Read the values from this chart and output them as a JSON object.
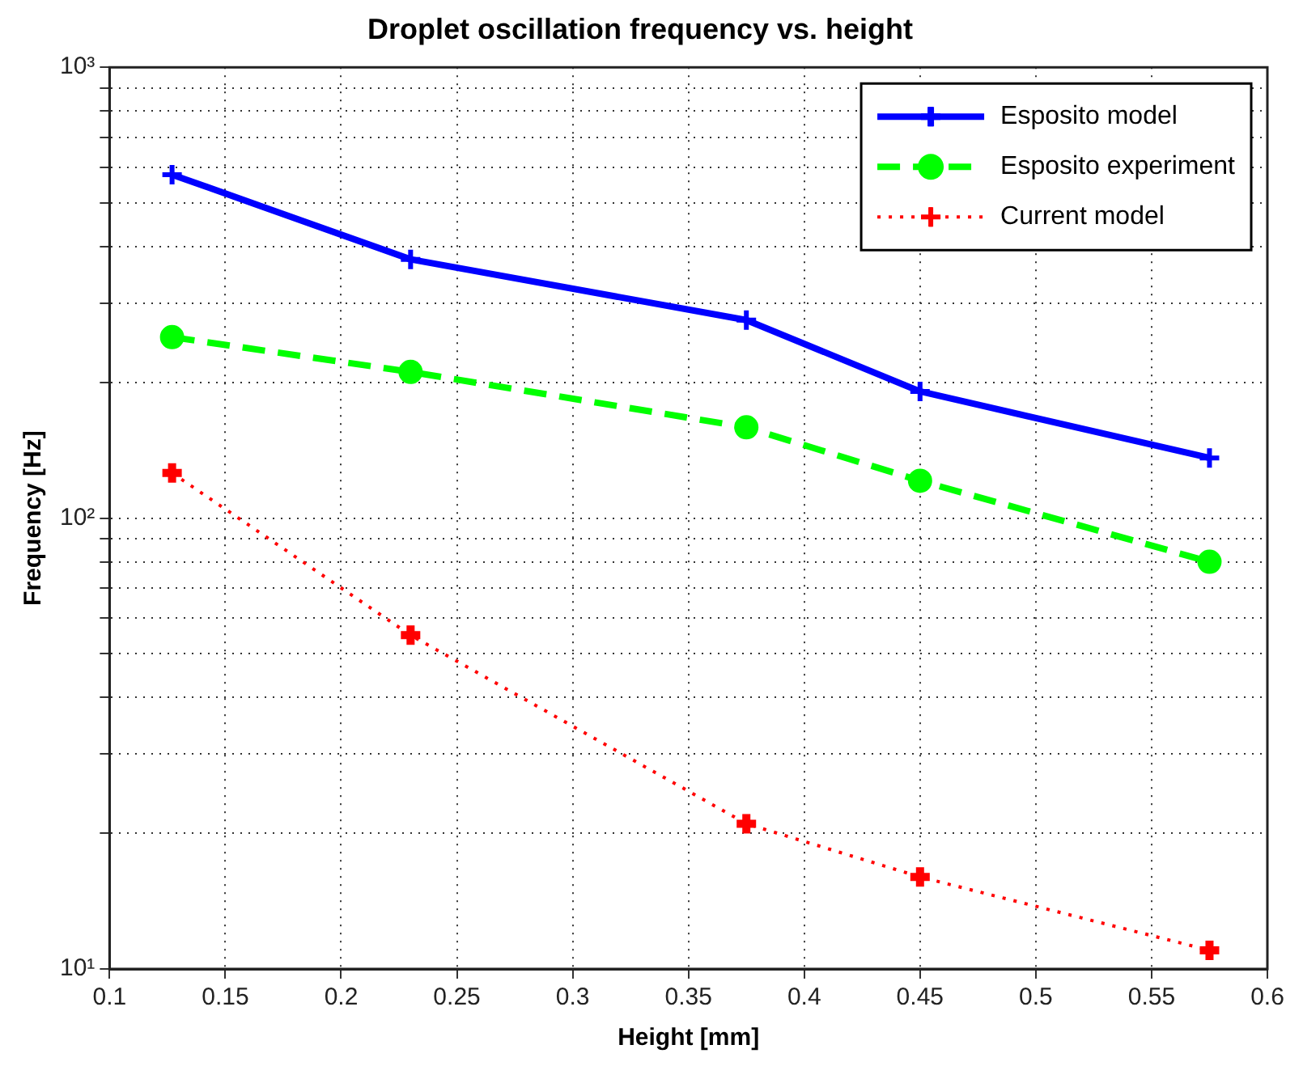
{
  "chart_data": {
    "type": "line",
    "title": "Droplet oscillation frequency vs. height",
    "xlabel": "Height [mm]",
    "ylabel": "Frequency [Hz]",
    "x": [
      0.127,
      0.23,
      0.375,
      0.45,
      0.575
    ],
    "series": [
      {
        "name": "Esposito model",
        "color": "#0000ff",
        "values": [
          578,
          375,
          275,
          191,
          136
        ],
        "marker": "cross",
        "line_style": "solid"
      },
      {
        "name": "Esposito experiment",
        "color": "#00ff00",
        "values": [
          252,
          211,
          159,
          121,
          80
        ],
        "marker": "circle",
        "line_style": "dashed"
      },
      {
        "name": "Current model",
        "color": "#ff0000",
        "values": [
          126,
          55,
          21,
          16,
          11
        ],
        "marker": "cross",
        "line_style": "dotted"
      }
    ],
    "log": "y",
    "xlim": [
      0.1,
      0.6
    ],
    "xticks": [
      0.1,
      0.15,
      0.2,
      0.25,
      0.3,
      0.35,
      0.4,
      0.45,
      0.5,
      0.55,
      0.6
    ],
    "ylim": [
      10,
      1000
    ],
    "yticks": [
      {
        "value": 10,
        "label": "10¹"
      },
      {
        "value": 20,
        "label": null
      },
      {
        "value": 30,
        "label": null
      },
      {
        "value": 40,
        "label": null
      },
      {
        "value": 50,
        "label": null
      },
      {
        "value": 60,
        "label": null
      },
      {
        "value": 70,
        "label": null
      },
      {
        "value": 80,
        "label": null
      },
      {
        "value": 90,
        "label": null
      },
      {
        "value": 100,
        "label": "10²"
      },
      {
        "value": 200,
        "label": null
      },
      {
        "value": 300,
        "label": null
      },
      {
        "value": 400,
        "label": null
      },
      {
        "value": 500,
        "label": null
      },
      {
        "value": 600,
        "label": null
      },
      {
        "value": 700,
        "label": null
      },
      {
        "value": 800,
        "label": null
      },
      {
        "value": 900,
        "label": null
      },
      {
        "value": 1000,
        "label": "10³"
      }
    ],
    "grid": true,
    "legend": "top right"
  }
}
